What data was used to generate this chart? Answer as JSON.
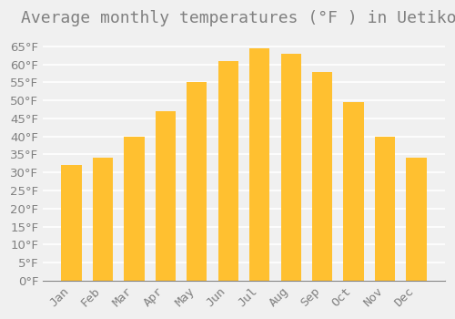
{
  "title": "Average monthly temperatures (°F ) in Uetikon",
  "months": [
    "Jan",
    "Feb",
    "Mar",
    "Apr",
    "May",
    "Jun",
    "Jul",
    "Aug",
    "Sep",
    "Oct",
    "Nov",
    "Dec"
  ],
  "values": [
    32,
    34,
    40,
    47,
    55,
    61,
    64.5,
    63,
    58,
    49.5,
    40,
    34
  ],
  "bar_color_top": "#FFC030",
  "bar_color_bottom": "#FFD878",
  "background_color": "#F0F0F0",
  "grid_color": "#FFFFFF",
  "text_color": "#808080",
  "ylim": [
    0,
    68
  ],
  "ytick_step": 5,
  "title_fontsize": 13,
  "tick_fontsize": 9.5
}
